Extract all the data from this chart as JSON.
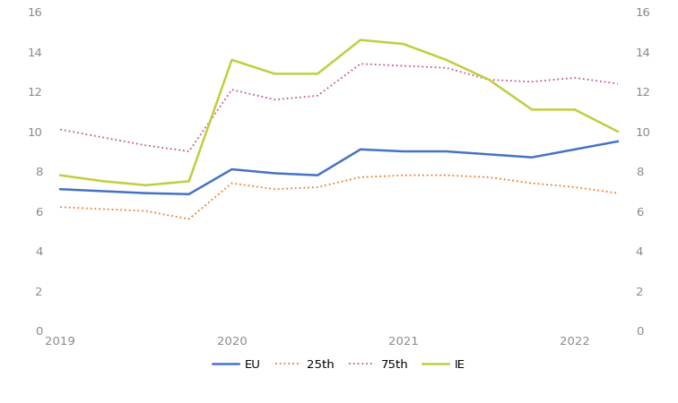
{
  "x_labels": [
    "2019",
    "2020",
    "2021",
    "2022"
  ],
  "x_ticks_pos": [
    0,
    4,
    8,
    12
  ],
  "x_values": [
    0,
    1,
    2,
    3,
    4,
    5,
    6,
    7,
    8,
    9,
    10,
    11,
    12,
    13
  ],
  "EU": [
    7.1,
    7.0,
    6.9,
    6.85,
    8.1,
    7.9,
    7.8,
    9.1,
    9.0,
    9.0,
    8.85,
    8.7,
    9.1,
    9.5
  ],
  "p25": [
    6.2,
    6.1,
    6.0,
    5.6,
    7.4,
    7.1,
    7.2,
    7.7,
    7.8,
    7.8,
    7.7,
    7.4,
    7.2,
    6.9
  ],
  "p75": [
    10.1,
    9.7,
    9.3,
    9.0,
    12.1,
    11.6,
    11.8,
    13.4,
    13.3,
    13.2,
    12.6,
    12.5,
    12.7,
    12.4
  ],
  "IE": [
    7.8,
    7.5,
    7.3,
    7.5,
    13.6,
    12.9,
    12.9,
    14.6,
    14.4,
    13.6,
    12.6,
    11.1,
    11.1,
    10.0
  ],
  "EU_color": "#4472C4",
  "p25_color": "#ED7D31",
  "p75_color": "#C55A9B",
  "IE_color": "#BFCE3C",
  "ylim": [
    0,
    16
  ],
  "yticks": [
    0,
    2,
    4,
    6,
    8,
    10,
    12,
    14,
    16
  ],
  "xlim": [
    -0.3,
    13.3
  ],
  "background_color": "#ffffff",
  "tick_color": "#888888",
  "legend_labels": [
    "EU",
    "25th",
    "75th",
    "IE"
  ]
}
